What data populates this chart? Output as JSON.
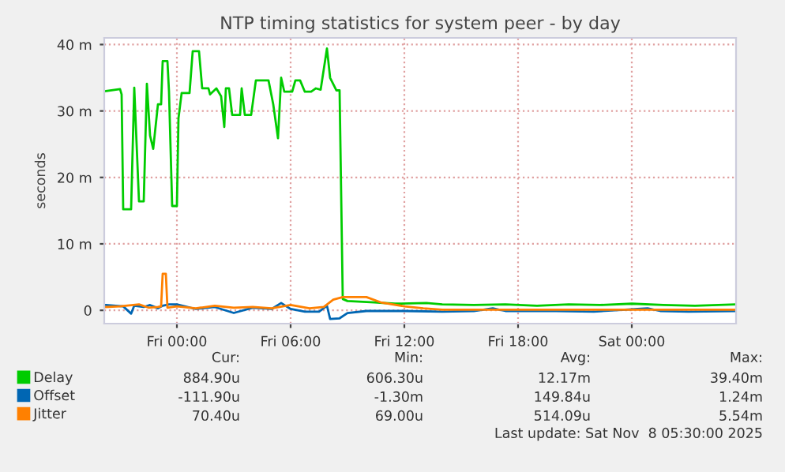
{
  "chart_data": {
    "type": "line",
    "title": "NTP timing statistics for system peer - by day",
    "ylabel": "seconds",
    "xlim": [
      "2025-11-06T20:10",
      "2025-11-08T05:30"
    ],
    "xticks": [
      {
        "value": "2025-11-07T00:00",
        "label": "Fri 00:00"
      },
      {
        "value": "2025-11-07T06:00",
        "label": "Fri 06:00"
      },
      {
        "value": "2025-11-07T12:00",
        "label": "Fri 12:00"
      },
      {
        "value": "2025-11-07T18:00",
        "label": "Fri 18:00"
      },
      {
        "value": "2025-11-08T00:00",
        "label": "Sat 00:00"
      }
    ],
    "ylim": [
      -2,
      41
    ],
    "yticks": [
      0,
      {
        "value": 10,
        "label": "10 m"
      },
      {
        "value": 20,
        "label": "20 m"
      },
      {
        "value": 30,
        "label": "30 m"
      },
      {
        "value": 40,
        "label": "40 m"
      }
    ],
    "grid": true,
    "legend": "bottom left",
    "series": [
      {
        "name": "Delay",
        "color": "#00cc00",
        "x": [
          "2025-11-06T20:15",
          "2025-11-06T21:00",
          "2025-11-06T21:05",
          "2025-11-06T21:10",
          "2025-11-06T21:35",
          "2025-11-06T21:45",
          "2025-11-06T22:00",
          "2025-11-06T22:15",
          "2025-11-06T22:25",
          "2025-11-06T22:35",
          "2025-11-06T22:45",
          "2025-11-06T23:00",
          "2025-11-06T23:10",
          "2025-11-06T23:15",
          "2025-11-06T23:30",
          "2025-11-06T23:35",
          "2025-11-06T23:45",
          "2025-11-07T00:00",
          "2025-11-07T00:05",
          "2025-11-07T00:15",
          "2025-11-07T00:40",
          "2025-11-07T00:50",
          "2025-11-07T01:10",
          "2025-11-07T01:20",
          "2025-11-07T01:40",
          "2025-11-07T01:45",
          "2025-11-07T02:05",
          "2025-11-07T02:20",
          "2025-11-07T02:30",
          "2025-11-07T02:35",
          "2025-11-07T02:45",
          "2025-11-07T02:55",
          "2025-11-07T03:20",
          "2025-11-07T03:25",
          "2025-11-07T03:35",
          "2025-11-07T03:55",
          "2025-11-07T04:10",
          "2025-11-07T04:50",
          "2025-11-07T05:05",
          "2025-11-07T05:20",
          "2025-11-07T05:30",
          "2025-11-07T05:40",
          "2025-11-07T06:05",
          "2025-11-07T06:15",
          "2025-11-07T06:30",
          "2025-11-07T06:45",
          "2025-11-07T07:05",
          "2025-11-07T07:20",
          "2025-11-07T07:35",
          "2025-11-07T07:55",
          "2025-11-07T08:05",
          "2025-11-07T08:25",
          "2025-11-07T08:35",
          "2025-11-07T08:45",
          "2025-11-07T09:00",
          "2025-11-07T10:25",
          "2025-11-07T11:30",
          "2025-11-07T13:10",
          "2025-11-07T14:00",
          "2025-11-07T15:40",
          "2025-11-07T17:20",
          "2025-11-07T19:00",
          "2025-11-07T20:40",
          "2025-11-07T22:20",
          "2025-11-08T00:00",
          "2025-11-08T01:40",
          "2025-11-08T03:20",
          "2025-11-08T05:30"
        ],
        "values": [
          33.0,
          33.3,
          32.5,
          15.2,
          15.2,
          33.5,
          16.4,
          16.4,
          34.1,
          26.3,
          24.3,
          31.0,
          31.0,
          37.5,
          37.5,
          32.9,
          15.7,
          15.7,
          28.9,
          32.7,
          32.7,
          39.0,
          39.0,
          33.4,
          33.4,
          32.5,
          33.4,
          32.2,
          27.6,
          33.4,
          33.4,
          29.4,
          29.4,
          33.4,
          29.4,
          29.4,
          34.6,
          34.6,
          31.0,
          25.9,
          35.0,
          32.9,
          32.9,
          34.6,
          34.6,
          32.9,
          32.9,
          33.4,
          33.2,
          39.4,
          35.0,
          33.1,
          33.1,
          1.7,
          1.4,
          1.2,
          1.0,
          1.1,
          0.9,
          0.8,
          0.9,
          0.7,
          0.9,
          0.8,
          1.0,
          0.8,
          0.7,
          0.9
        ]
      },
      {
        "name": "Offset",
        "color": "#0066b3",
        "x": [
          "2025-11-06T20:15",
          "2025-11-06T21:10",
          "2025-11-06T21:35",
          "2025-11-06T21:45",
          "2025-11-06T22:15",
          "2025-11-06T22:35",
          "2025-11-06T23:00",
          "2025-11-06T23:15",
          "2025-11-06T23:35",
          "2025-11-07T00:00",
          "2025-11-07T01:00",
          "2025-11-07T02:00",
          "2025-11-07T03:00",
          "2025-11-07T04:00",
          "2025-11-07T05:00",
          "2025-11-07T05:30",
          "2025-11-07T06:00",
          "2025-11-07T06:45",
          "2025-11-07T07:30",
          "2025-11-07T07:55",
          "2025-11-07T08:05",
          "2025-11-07T08:35",
          "2025-11-07T09:00",
          "2025-11-07T10:00",
          "2025-11-07T12:00",
          "2025-11-07T14:00",
          "2025-11-07T15:40",
          "2025-11-07T16:40",
          "2025-11-07T17:20",
          "2025-11-07T20:00",
          "2025-11-07T22:00",
          "2025-11-08T00:50",
          "2025-11-08T01:30",
          "2025-11-08T03:00",
          "2025-11-08T05:30"
        ],
        "values": [
          0.8,
          0.6,
          -0.5,
          0.7,
          0.5,
          0.8,
          0.3,
          0.7,
          0.9,
          0.9,
          0.2,
          0.5,
          -0.4,
          0.4,
          0.2,
          1.1,
          0.2,
          -0.2,
          -0.2,
          0.7,
          -1.3,
          -1.2,
          -0.4,
          -0.1,
          -0.1,
          -0.2,
          -0.1,
          0.3,
          -0.1,
          -0.1,
          -0.2,
          0.3,
          -0.1,
          -0.2,
          -0.1
        ]
      },
      {
        "name": "Jitter",
        "color": "#ff8000",
        "x": [
          "2025-11-06T20:15",
          "2025-11-06T21:00",
          "2025-11-06T22:00",
          "2025-11-06T22:30",
          "2025-11-06T23:00",
          "2025-11-06T23:10",
          "2025-11-06T23:15",
          "2025-11-06T23:25",
          "2025-11-06T23:30",
          "2025-11-07T00:00",
          "2025-11-07T01:00",
          "2025-11-07T02:00",
          "2025-11-07T03:00",
          "2025-11-07T04:00",
          "2025-11-07T05:00",
          "2025-11-07T06:00",
          "2025-11-07T07:00",
          "2025-11-07T07:45",
          "2025-11-07T08:15",
          "2025-11-07T08:45",
          "2025-11-07T10:00",
          "2025-11-07T10:45",
          "2025-11-07T12:00",
          "2025-11-07T13:00",
          "2025-11-07T14:00",
          "2025-11-08T05:30"
        ],
        "values": [
          0.5,
          0.6,
          0.9,
          0.4,
          0.5,
          0.6,
          5.5,
          5.5,
          0.4,
          0.6,
          0.3,
          0.7,
          0.4,
          0.5,
          0.3,
          0.8,
          0.3,
          0.5,
          1.6,
          2.0,
          2.0,
          1.2,
          0.6,
          0.3,
          0.1,
          0.1
        ]
      }
    ],
    "annotations": [
      "Cur:",
      "Min:",
      "Avg:",
      "Max:",
      "884.90u",
      "606.30u",
      "12.17m",
      "39.40m",
      "-111.90u",
      "-1.30m",
      "149.84u",
      "1.24m",
      "70.40u",
      "69.00u",
      "514.09u",
      "5.54m",
      "Last update: Sat Nov  8 05:30:00 2025"
    ]
  }
}
